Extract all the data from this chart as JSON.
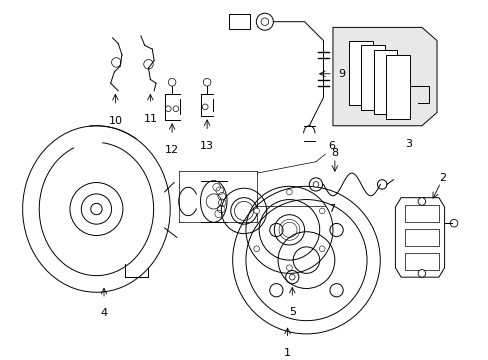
{
  "bg_color": "#ffffff",
  "line_color": "#000000",
  "fig_width": 4.89,
  "fig_height": 3.6,
  "dpi": 100,
  "label_fs": 8,
  "lw": 0.7
}
